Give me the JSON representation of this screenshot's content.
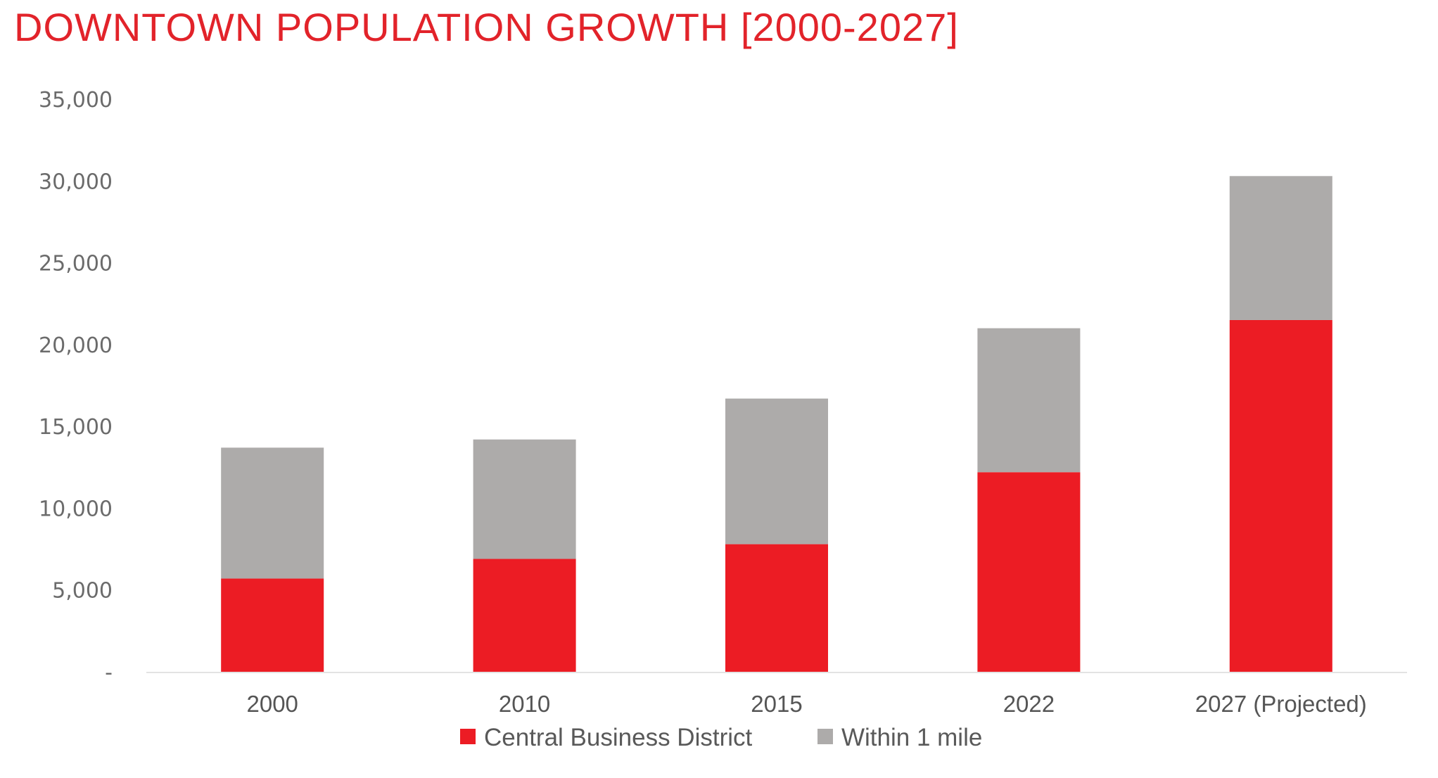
{
  "title": "DOWNTOWN POPULATION GROWTH [2000-2027]",
  "colors": {
    "title": "#e2232a",
    "cbd": "#ec1c24",
    "within": "#adabaa",
    "axis": "#e3e3e3",
    "tick_text": "#6b6b6b"
  },
  "chart_data": {
    "type": "bar",
    "stacked": true,
    "title": "DOWNTOWN POPULATION GROWTH [2000-2027]",
    "xlabel": "",
    "ylabel": "",
    "categories": [
      "2000",
      "2010",
      "2015",
      "2022",
      "2027 (Projected)"
    ],
    "series": [
      {
        "name": "Central Business District",
        "color": "#ec1c24",
        "values": [
          5700,
          6900,
          7800,
          12200,
          21500
        ]
      },
      {
        "name": "Within 1 mile",
        "color": "#adabaa",
        "values": [
          8000,
          7300,
          8900,
          8800,
          8800
        ]
      }
    ],
    "ylim": [
      0,
      35000
    ],
    "yticks": [
      0,
      5000,
      10000,
      15000,
      20000,
      25000,
      30000,
      35000
    ],
    "ytick_labels": [
      "-",
      "5,000",
      "10,000",
      "15,000",
      "20,000",
      "25,000",
      "30,000",
      "35,000"
    ],
    "grid": false,
    "legend": {
      "position": "bottom",
      "entries": [
        "Central Business District",
        "Within 1 mile"
      ]
    }
  }
}
